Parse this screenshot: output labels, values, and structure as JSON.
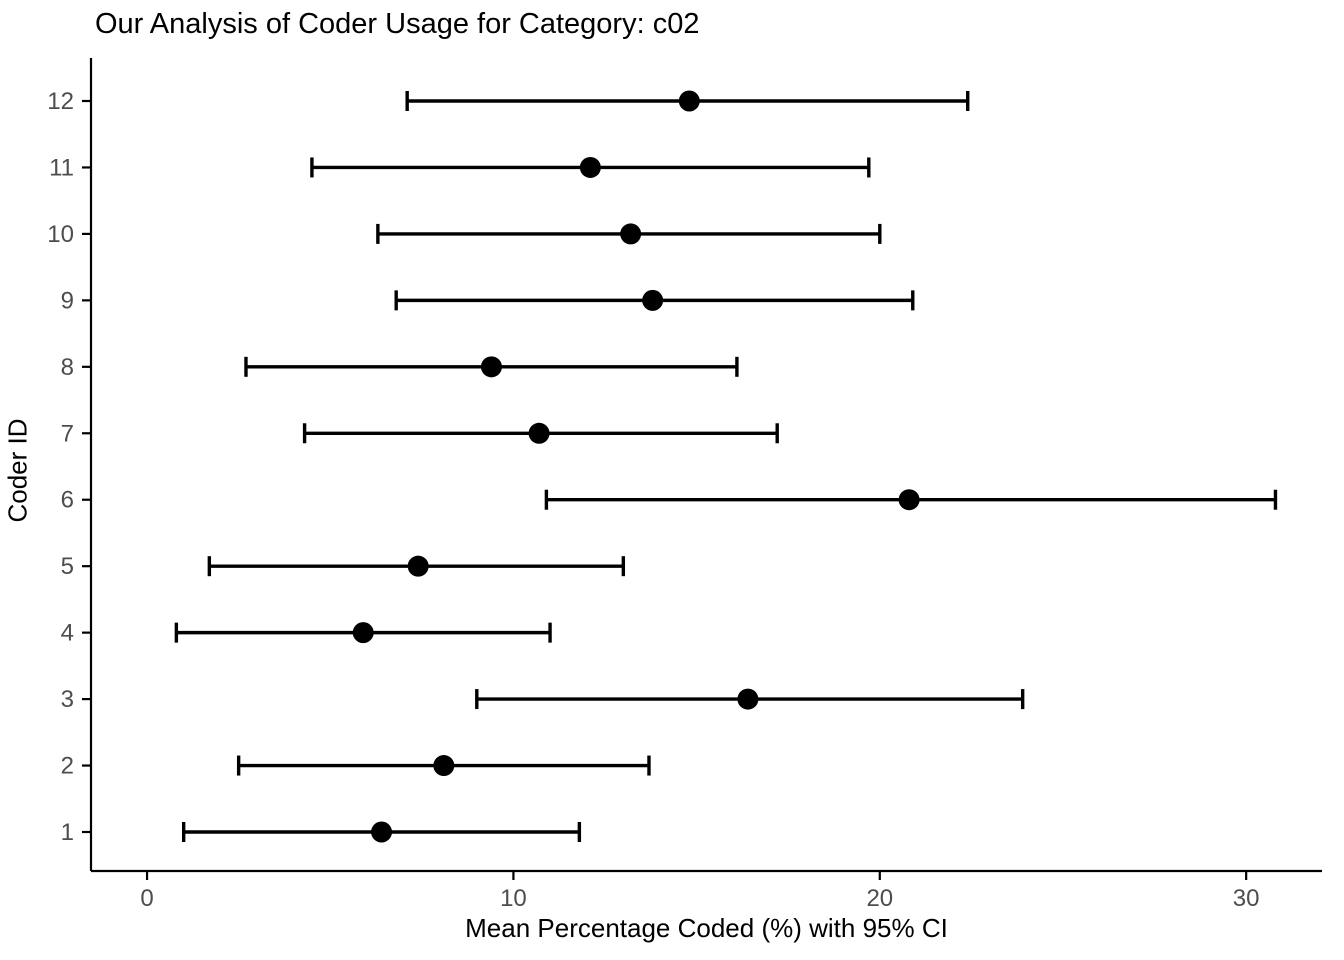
{
  "style": {
    "background": "#FFFFFF",
    "axis_color": "#000000",
    "data_color": "#000000",
    "tick_label_color": "#4D4D4D",
    "title_color": "#000000"
  },
  "chart_data": {
    "type": "scatter",
    "subtype": "dot-with-horizontal-error-bars",
    "orientation": "horizontal",
    "title": "Our Analysis of Coder Usage for Category: c02",
    "xlabel": "Mean Percentage Coded (%) with 95% CI",
    "ylabel": "Coder ID",
    "xlim": [
      -1.53,
      32.07
    ],
    "x_ticks": [
      0,
      10,
      20,
      30
    ],
    "y_ticks": [
      "1",
      "2",
      "3",
      "4",
      "5",
      "6",
      "7",
      "8",
      "9",
      "10",
      "11",
      "12"
    ],
    "grid": false,
    "legend": "none",
    "ci_level": "95%",
    "series": [
      {
        "name": "Mean Percentage Coded with 95% CI",
        "points": [
          {
            "coder_id": 1,
            "mean": 6.4,
            "ci_low": 1.0,
            "ci_high": 11.8
          },
          {
            "coder_id": 2,
            "mean": 8.1,
            "ci_low": 2.5,
            "ci_high": 13.7
          },
          {
            "coder_id": 3,
            "mean": 16.4,
            "ci_low": 9.0,
            "ci_high": 23.9
          },
          {
            "coder_id": 4,
            "mean": 5.9,
            "ci_low": 0.8,
            "ci_high": 11.0
          },
          {
            "coder_id": 5,
            "mean": 7.4,
            "ci_low": 1.7,
            "ci_high": 13.0
          },
          {
            "coder_id": 6,
            "mean": 20.8,
            "ci_low": 10.9,
            "ci_high": 30.8
          },
          {
            "coder_id": 7,
            "mean": 10.7,
            "ci_low": 4.3,
            "ci_high": 17.2
          },
          {
            "coder_id": 8,
            "mean": 9.4,
            "ci_low": 2.7,
            "ci_high": 16.1
          },
          {
            "coder_id": 9,
            "mean": 13.8,
            "ci_low": 6.8,
            "ci_high": 20.9
          },
          {
            "coder_id": 10,
            "mean": 13.2,
            "ci_low": 6.3,
            "ci_high": 20.0
          },
          {
            "coder_id": 11,
            "mean": 12.1,
            "ci_low": 4.5,
            "ci_high": 19.7
          },
          {
            "coder_id": 12,
            "mean": 14.8,
            "ci_low": 7.1,
            "ci_high": 22.4
          }
        ]
      }
    ]
  }
}
